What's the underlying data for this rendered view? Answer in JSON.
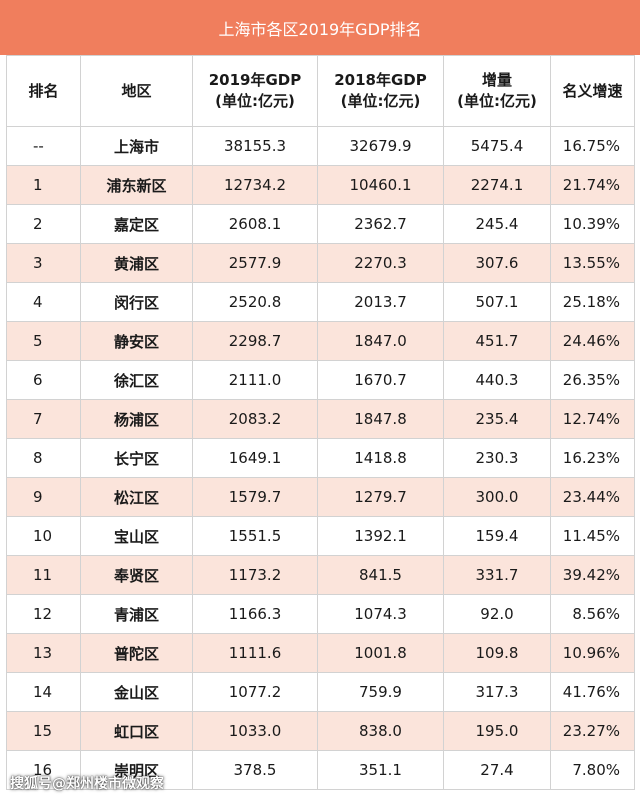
{
  "title": "上海市各区2019年GDP排名",
  "headers": {
    "rank": "排名",
    "region": "地区",
    "gdp2019_line1": "2019年GDP",
    "gdp2019_line2": "(单位:亿元)",
    "gdp2018_line1": "2018年GDP",
    "gdp2018_line2": "(单位:亿元)",
    "increase_line1": "增量",
    "increase_line2": "(单位:亿元)",
    "growth": "名义增速"
  },
  "rows": [
    {
      "rank": "--",
      "region": "上海市",
      "gdp2019": "38155.3",
      "gdp2018": "32679.9",
      "increase": "5475.4",
      "growth": "16.75%"
    },
    {
      "rank": "1",
      "region": "浦东新区",
      "gdp2019": "12734.2",
      "gdp2018": "10460.1",
      "increase": "2274.1",
      "growth": "21.74%"
    },
    {
      "rank": "2",
      "region": "嘉定区",
      "gdp2019": "2608.1",
      "gdp2018": "2362.7",
      "increase": "245.4",
      "growth": "10.39%"
    },
    {
      "rank": "3",
      "region": "黄浦区",
      "gdp2019": "2577.9",
      "gdp2018": "2270.3",
      "increase": "307.6",
      "growth": "13.55%"
    },
    {
      "rank": "4",
      "region": "闵行区",
      "gdp2019": "2520.8",
      "gdp2018": "2013.7",
      "increase": "507.1",
      "growth": "25.18%"
    },
    {
      "rank": "5",
      "region": "静安区",
      "gdp2019": "2298.7",
      "gdp2018": "1847.0",
      "increase": "451.7",
      "growth": "24.46%"
    },
    {
      "rank": "6",
      "region": "徐汇区",
      "gdp2019": "2111.0",
      "gdp2018": "1670.7",
      "increase": "440.3",
      "growth": "26.35%"
    },
    {
      "rank": "7",
      "region": "杨浦区",
      "gdp2019": "2083.2",
      "gdp2018": "1847.8",
      "increase": "235.4",
      "growth": "12.74%"
    },
    {
      "rank": "8",
      "region": "长宁区",
      "gdp2019": "1649.1",
      "gdp2018": "1418.8",
      "increase": "230.3",
      "growth": "16.23%"
    },
    {
      "rank": "9",
      "region": "松江区",
      "gdp2019": "1579.7",
      "gdp2018": "1279.7",
      "increase": "300.0",
      "growth": "23.44%"
    },
    {
      "rank": "10",
      "region": "宝山区",
      "gdp2019": "1551.5",
      "gdp2018": "1392.1",
      "increase": "159.4",
      "growth": "11.45%"
    },
    {
      "rank": "11",
      "region": "奉贤区",
      "gdp2019": "1173.2",
      "gdp2018": "841.5",
      "increase": "331.7",
      "growth": "39.42%"
    },
    {
      "rank": "12",
      "region": "青浦区",
      "gdp2019": "1166.3",
      "gdp2018": "1074.3",
      "increase": "92.0",
      "growth": "8.56%"
    },
    {
      "rank": "13",
      "region": "普陀区",
      "gdp2019": "1111.6",
      "gdp2018": "1001.8",
      "increase": "109.8",
      "growth": "10.96%"
    },
    {
      "rank": "14",
      "region": "金山区",
      "gdp2019": "1077.2",
      "gdp2018": "759.9",
      "increase": "317.3",
      "growth": "41.76%"
    },
    {
      "rank": "15",
      "region": "虹口区",
      "gdp2019": "1033.0",
      "gdp2018": "838.0",
      "increase": "195.0",
      "growth": "23.27%"
    },
    {
      "rank": "16",
      "region": "崇明区",
      "gdp2019": "378.5",
      "gdp2018": "351.1",
      "increase": "27.4",
      "growth": "7.80%"
    }
  ],
  "watermark": "搜狐号@郑州楼市微观察",
  "colors": {
    "title_bar": "#f07e5d",
    "alt_row": "#fbe4db",
    "border": "#d2d2d2"
  }
}
